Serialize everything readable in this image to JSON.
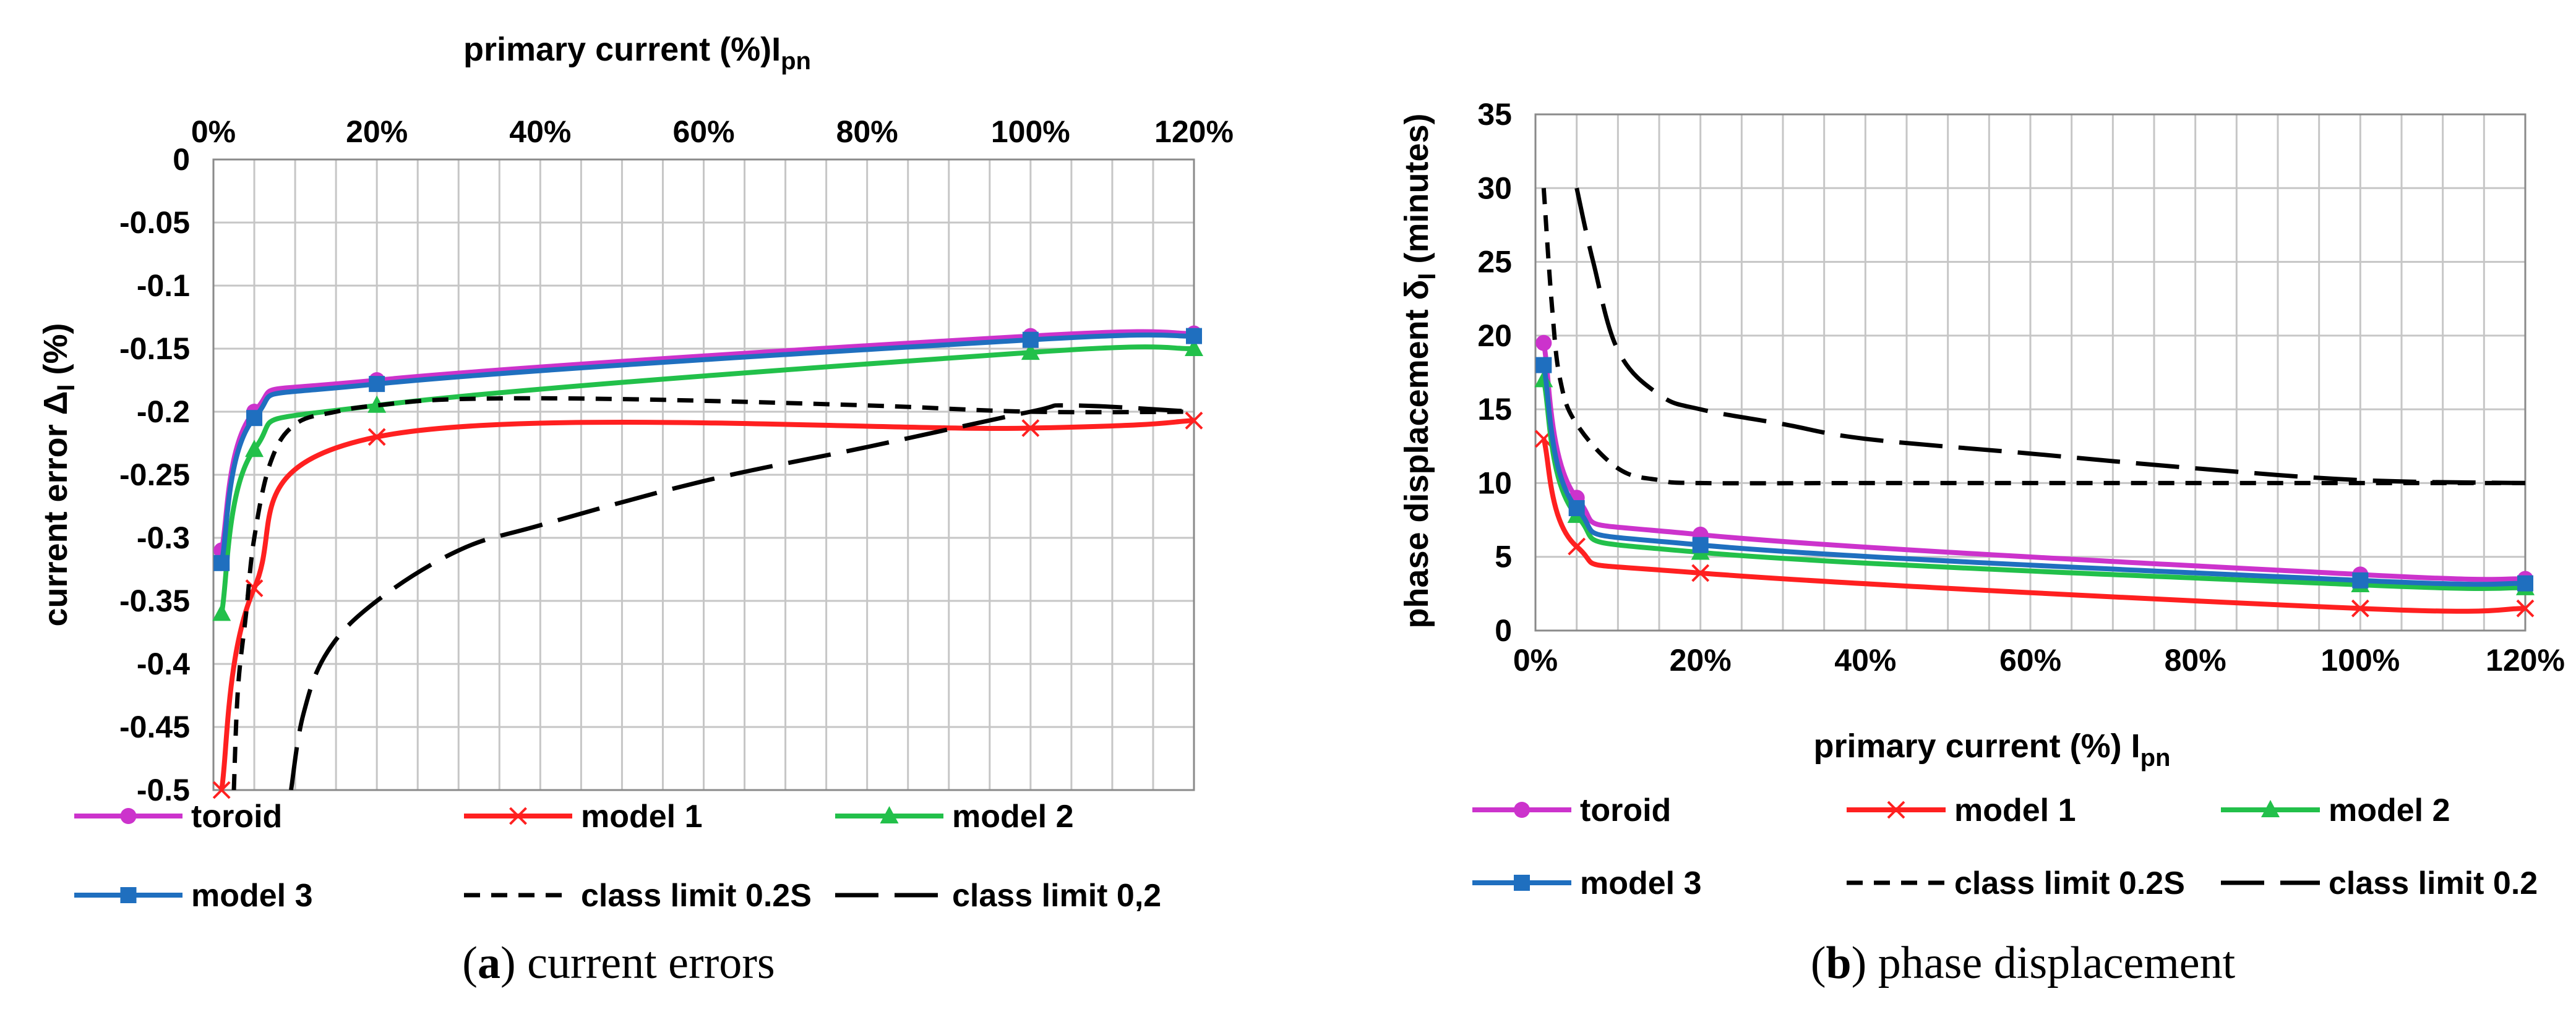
{
  "chart_data": [
    {
      "type": "line",
      "id": "a",
      "caption_label": "a",
      "caption_text": "current errors",
      "xlabel": "primary current (%)I",
      "xlabel_sub": "pn",
      "ylabel": "current error Δ",
      "ylabel_sub": "I",
      "ylabel_tail": " (%)",
      "x_axis_position": "top",
      "xlim": [
        0,
        120
      ],
      "ylim": [
        -0.5,
        0
      ],
      "x_ticks": [
        0,
        20,
        40,
        60,
        80,
        100,
        120
      ],
      "x_tick_labels": [
        "0%",
        "20%",
        "40%",
        "60%",
        "80%",
        "100%",
        "120%"
      ],
      "y_ticks": [
        0,
        -0.05,
        -0.1,
        -0.15,
        -0.2,
        -0.25,
        -0.3,
        -0.35,
        -0.4,
        -0.45,
        -0.5
      ],
      "y_tick_labels": [
        "0",
        "-0.05",
        "-0.1",
        "-0.15",
        "-0.2",
        "-0.25",
        "-0.3",
        "-0.35",
        "-0.4",
        "-0.45",
        "-0.5"
      ],
      "series": [
        {
          "name": "toroid",
          "color": "#cc33cc",
          "marker": "circle",
          "dash": "solid",
          "x": [
            1,
            5,
            20,
            100,
            120
          ],
          "y": [
            -0.31,
            -0.2,
            -0.175,
            -0.14,
            -0.138
          ]
        },
        {
          "name": "model 1",
          "color": "#ff2020",
          "marker": "x",
          "dash": "solid",
          "x": [
            1,
            5,
            20,
            100,
            120
          ],
          "y": [
            -0.5,
            -0.34,
            -0.22,
            -0.213,
            -0.207
          ]
        },
        {
          "name": "model 2",
          "color": "#22c04a",
          "marker": "triangle",
          "dash": "solid",
          "x": [
            1,
            5,
            20,
            100,
            120
          ],
          "y": [
            -0.36,
            -0.23,
            -0.195,
            -0.153,
            -0.15
          ]
        },
        {
          "name": "model 3",
          "color": "#1f6fbf",
          "marker": "square",
          "dash": "solid",
          "x": [
            1,
            5,
            20,
            100,
            120
          ],
          "y": [
            -0.32,
            -0.205,
            -0.178,
            -0.143,
            -0.14
          ]
        },
        {
          "name": "class limit 0.2S",
          "color": "#000000",
          "marker": "none",
          "dash": "short",
          "x": [
            2.5,
            3,
            4,
            5,
            7,
            10,
            15,
            20,
            30,
            50,
            80,
            100,
            120
          ],
          "y": [
            -0.5,
            -0.42,
            -0.36,
            -0.3,
            -0.24,
            -0.21,
            -0.2,
            -0.195,
            -0.19,
            -0.19,
            -0.195,
            -0.2,
            -0.2
          ]
        },
        {
          "name": "class limit  0,2",
          "color": "#000000",
          "marker": "none",
          "dash": "long",
          "x": [
            9.5,
            11,
            14,
            20,
            30,
            40,
            60,
            80,
            100,
            105,
            120
          ],
          "y": [
            -0.5,
            -0.44,
            -0.39,
            -0.35,
            -0.31,
            -0.29,
            -0.255,
            -0.228,
            -0.2,
            -0.195,
            -0.2
          ]
        }
      ],
      "legend": [
        {
          "name": "toroid"
        },
        {
          "name": "model 1"
        },
        {
          "name": "model 2"
        },
        {
          "name": "model 3"
        },
        {
          "name": "class limit 0.2S"
        },
        {
          "name": "class limit  0,2"
        }
      ]
    },
    {
      "type": "line",
      "id": "b",
      "caption_label": "b",
      "caption_text": "phase displacement",
      "xlabel": "primary current (%) I",
      "xlabel_sub": "pn",
      "ylabel": "phase displacement δ",
      "ylabel_sub": "I",
      "ylabel_tail": " (minutes)",
      "x_axis_position": "bottom",
      "xlim": [
        0,
        120
      ],
      "ylim": [
        0,
        35
      ],
      "x_ticks": [
        0,
        20,
        40,
        60,
        80,
        100,
        120
      ],
      "x_tick_labels": [
        "0%",
        "20%",
        "40%",
        "60%",
        "80%",
        "100%",
        "120%"
      ],
      "y_ticks": [
        0,
        5,
        10,
        15,
        20,
        25,
        30,
        35
      ],
      "y_tick_labels": [
        "0",
        "5",
        "10",
        "15",
        "20",
        "25",
        "30",
        "35"
      ],
      "series": [
        {
          "name": "toroid",
          "color": "#cc33cc",
          "marker": "circle",
          "dash": "solid",
          "x": [
            1,
            5,
            20,
            100,
            120
          ],
          "y": [
            19.5,
            9,
            6.5,
            3.8,
            3.5
          ]
        },
        {
          "name": "model 1",
          "color": "#ff2020",
          "marker": "x",
          "dash": "solid",
          "x": [
            1,
            5,
            20,
            100,
            120
          ],
          "y": [
            13,
            5.7,
            3.9,
            1.5,
            1.5
          ]
        },
        {
          "name": "model 2",
          "color": "#22c04a",
          "marker": "triangle",
          "dash": "solid",
          "x": [
            1,
            5,
            20,
            100,
            120
          ],
          "y": [
            17,
            7.8,
            5.3,
            3.1,
            2.9
          ]
        },
        {
          "name": "model 3",
          "color": "#1f6fbf",
          "marker": "square",
          "dash": "solid",
          "x": [
            1,
            5,
            20,
            100,
            120
          ],
          "y": [
            18,
            8.3,
            5.8,
            3.4,
            3.2
          ]
        },
        {
          "name": "class limit 0.2S",
          "color": "#000000",
          "marker": "none",
          "dash": "short",
          "x": [
            1,
            2,
            3,
            5,
            10,
            15,
            20,
            40,
            60,
            100,
            120
          ],
          "y": [
            30,
            22,
            17,
            14,
            11,
            10.2,
            10,
            10,
            10,
            10,
            10
          ]
        },
        {
          "name": "class limit 0.2",
          "color": "#000000",
          "marker": "none",
          "dash": "long",
          "x": [
            5,
            7,
            10,
            15,
            20,
            30,
            40,
            60,
            80,
            100,
            120
          ],
          "y": [
            30,
            25,
            19,
            16,
            15,
            14,
            13,
            12,
            11,
            10.2,
            10
          ]
        }
      ],
      "legend": [
        {
          "name": "toroid"
        },
        {
          "name": "model 1"
        },
        {
          "name": "model 2"
        },
        {
          "name": "model 3"
        },
        {
          "name": "class limit 0.2S"
        },
        {
          "name": "class limit 0.2"
        }
      ]
    }
  ]
}
